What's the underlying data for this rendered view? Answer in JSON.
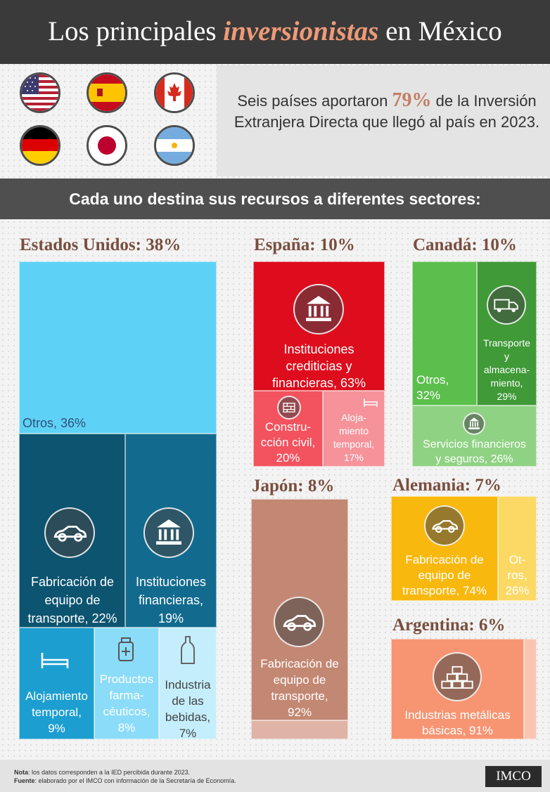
{
  "header": {
    "title_pre": "Los principales ",
    "title_highlight": "inversionistas",
    "title_post": " en México"
  },
  "intro": {
    "text_pre": "Seis países aportaron ",
    "percent": "79%",
    "text_post": " de la Inversión Extranjera Directa que llegó al país en 2023.",
    "flags": [
      "us-flag-icon",
      "spain-flag-icon",
      "canada-flag-icon",
      "germany-flag-icon",
      "japan-flag-icon",
      "argentina-flag-icon"
    ]
  },
  "subheader": "Cada uno destina sus recursos a diferentes sectores:",
  "chart_data": {
    "type": "treemap",
    "countries": [
      {
        "name": "Estados Unidos",
        "share": "38%",
        "sectors": [
          {
            "label": "Otros, 36%",
            "value": 36,
            "color": "#5ed2f6"
          },
          {
            "label": "Fabricación de equipo de transporte, 22%",
            "value": 22,
            "color": "#0c5470",
            "icon": "car-icon"
          },
          {
            "label": "Instituciones financieras, 19%",
            "value": 19,
            "color": "#126b8e",
            "icon": "bank-icon"
          },
          {
            "label": "Alojamiento temporal, 9%",
            "value": 9,
            "color": "#1d9ed0",
            "icon": "bed-icon"
          },
          {
            "label": "Productos farma- céuticos, 8%",
            "value": 8,
            "color": "#8bdcf9",
            "icon": "medicine-icon"
          },
          {
            "label": "Industria de las bebidas, 7%",
            "value": 7,
            "color": "#c4eefc",
            "icon": "bottle-icon"
          }
        ]
      },
      {
        "name": "España",
        "share": "10%",
        "sectors": [
          {
            "label": "Instituciones crediticias y financieras, 63%",
            "value": 63,
            "color": "#dd0d1d",
            "icon": "bank-icon"
          },
          {
            "label": "Constru- cción civil, 20%",
            "value": 20,
            "color": "#f2535e",
            "icon": "brick-wall-icon"
          },
          {
            "label": "Aloja- miento temporal, 17%",
            "value": 17,
            "color": "#f6939a",
            "icon": "bed-icon"
          }
        ]
      },
      {
        "name": "Canadá",
        "share": "10%",
        "sectors": [
          {
            "label": "Otros, 32%",
            "value": 32,
            "color": "#5bbf4c"
          },
          {
            "label": "Transporte y almacena- miento, 29%",
            "value": 29,
            "color": "#3f9a37",
            "icon": "truck-icon"
          },
          {
            "label": "Servicios financieros y seguros, 26%",
            "value": 26,
            "color": "#8fd283",
            "icon": "bank-icon"
          }
        ]
      },
      {
        "name": "Japón",
        "share": "8%",
        "sectors": [
          {
            "label": "Fabricación de equipo de transporte, 92%",
            "value": 92,
            "color": "#c38873",
            "icon": "car-icon"
          },
          {
            "value": 8,
            "color": "#dfb4a6"
          }
        ]
      },
      {
        "name": "Alemania",
        "share": "7%",
        "sectors": [
          {
            "label": "Fabricación de equipo de transporte, 74%",
            "value": 74,
            "color": "#f9b80e",
            "icon": "car-icon"
          },
          {
            "label": "Ot- ros, 26%",
            "value": 26,
            "color": "#fcd965"
          }
        ]
      },
      {
        "name": "Argentina",
        "share": "6%",
        "sectors": [
          {
            "label": "Industrias metálicas básicas, 91%",
            "value": 91,
            "color": "#f79572",
            "icon": "gold-bars-icon"
          },
          {
            "value": 9,
            "color": "#fbc4b2"
          }
        ]
      }
    ]
  },
  "labels": {
    "us_otros": "Otros, 36%",
    "us_transport": [
      "Fabricación de",
      "equipo de",
      "transporte, 22%"
    ],
    "us_financial": [
      "Instituciones",
      "financieras,",
      "19%"
    ],
    "us_lodging": [
      "Alojamiento",
      "temporal,",
      "9%"
    ],
    "us_pharma": [
      "Productos",
      "farma-",
      "céuticos,",
      "8%"
    ],
    "us_drinks": [
      "Industria",
      "de las",
      "bebidas,",
      "7%"
    ],
    "es_financial": [
      "Instituciones",
      "crediticias y",
      "financieras, 63%"
    ],
    "es_construction": [
      "Constru-",
      "cción civil,",
      "20%"
    ],
    "es_lodging": [
      "Aloja-",
      "miento",
      "temporal,",
      "17%"
    ],
    "ca_otros": [
      "Otros,",
      "32%"
    ],
    "ca_transport": [
      "Transporte",
      "y",
      "almacena-",
      "miento,",
      "29%"
    ],
    "ca_financial": [
      "Servicios financieros",
      "y seguros, 26%"
    ],
    "jp_transport": [
      "Fabricación de",
      "equipo de",
      "transporte,",
      "92%"
    ],
    "de_transport": [
      "Fabricación de",
      "equipo de",
      "transporte, 74%"
    ],
    "de_otros": [
      "Ot-",
      "ros,",
      "26%"
    ],
    "ar_metals": [
      "Industrias metálicas",
      "básicas, 91%"
    ]
  },
  "country_titles": {
    "us": "Estados Unidos: 38%",
    "es": "España: 10%",
    "ca": "Canadá: 10%",
    "jp": "Japón: 8%",
    "de": "Alemania: 7%",
    "ar": "Argentina: 6%"
  },
  "footer": {
    "note_label": "Nota",
    "note_text": ": los datos corresponden a la IED percibida durante 2023.",
    "source_label": "Fuente",
    "source_text": ": elaborado por el IMCO con información de la Secretaría de Economía.",
    "logo": "IMCO"
  }
}
